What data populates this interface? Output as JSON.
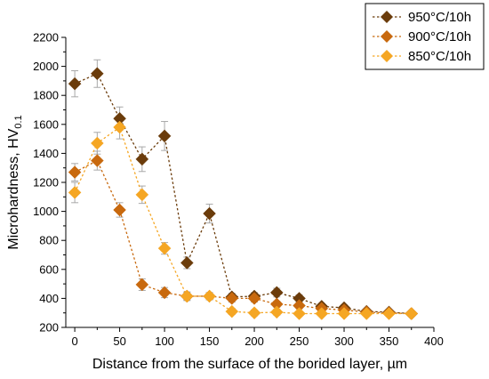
{
  "chart_data": {
    "type": "scatter",
    "xlabel": "Distance from the surface of the borided layer, µm",
    "ylabel_main": "Microhardness, HV",
    "ylabel_sub": "0.1",
    "xlim": [
      -10,
      400
    ],
    "ylim": [
      200,
      2200
    ],
    "x_ticks": [
      "0",
      "50",
      "100",
      "150",
      "200",
      "250",
      "300",
      "350",
      "400"
    ],
    "y_ticks": [
      "200",
      "400",
      "600",
      "800",
      "1000",
      "1200",
      "1400",
      "1600",
      "1800",
      "2000",
      "2200"
    ],
    "x_tick_values": [
      0,
      50,
      100,
      150,
      200,
      250,
      300,
      350,
      400
    ],
    "y_tick_values": [
      200,
      400,
      600,
      800,
      1000,
      1200,
      1400,
      1600,
      1800,
      2000,
      2200
    ],
    "legend_position": "top-right",
    "grid": false,
    "line_style": "dotted",
    "marker": "diamond",
    "series": [
      {
        "name": "950°C/10h",
        "color": "#6b3c0b",
        "x": [
          0,
          25,
          50,
          75,
          100,
          125,
          150,
          175,
          200,
          225,
          250,
          275,
          300,
          325,
          350,
          375
        ],
        "y": [
          1880,
          1950,
          1640,
          1360,
          1520,
          645,
          985,
          410,
          415,
          440,
          400,
          345,
          335,
          310,
          305,
          295
        ],
        "err": [
          90,
          95,
          80,
          85,
          100,
          40,
          65,
          25,
          25,
          30,
          25,
          20,
          20,
          15,
          15,
          15
        ]
      },
      {
        "name": "900°C/10h",
        "color": "#c8690e",
        "x": [
          0,
          25,
          50,
          75,
          100,
          125,
          150,
          175,
          200,
          225,
          250,
          275,
          300,
          325,
          350,
          375
        ],
        "y": [
          1270,
          1350,
          1010,
          495,
          440,
          415,
          415,
          400,
          400,
          360,
          350,
          330,
          320,
          305,
          300,
          295
        ],
        "err": [
          60,
          65,
          50,
          40,
          35,
          30,
          25,
          25,
          25,
          20,
          20,
          20,
          15,
          15,
          15,
          15
        ]
      },
      {
        "name": "850°C/10h",
        "color": "#f5a623",
        "x": [
          0,
          25,
          50,
          75,
          100,
          125,
          150,
          175,
          200,
          225,
          250,
          275,
          300,
          325,
          350,
          375
        ],
        "y": [
          1130,
          1470,
          1580,
          1115,
          745,
          415,
          415,
          310,
          300,
          305,
          295,
          295,
          295,
          295,
          295,
          295
        ],
        "err": [
          70,
          75,
          80,
          60,
          40,
          25,
          25,
          20,
          20,
          20,
          15,
          15,
          15,
          15,
          15,
          15
        ]
      }
    ]
  }
}
